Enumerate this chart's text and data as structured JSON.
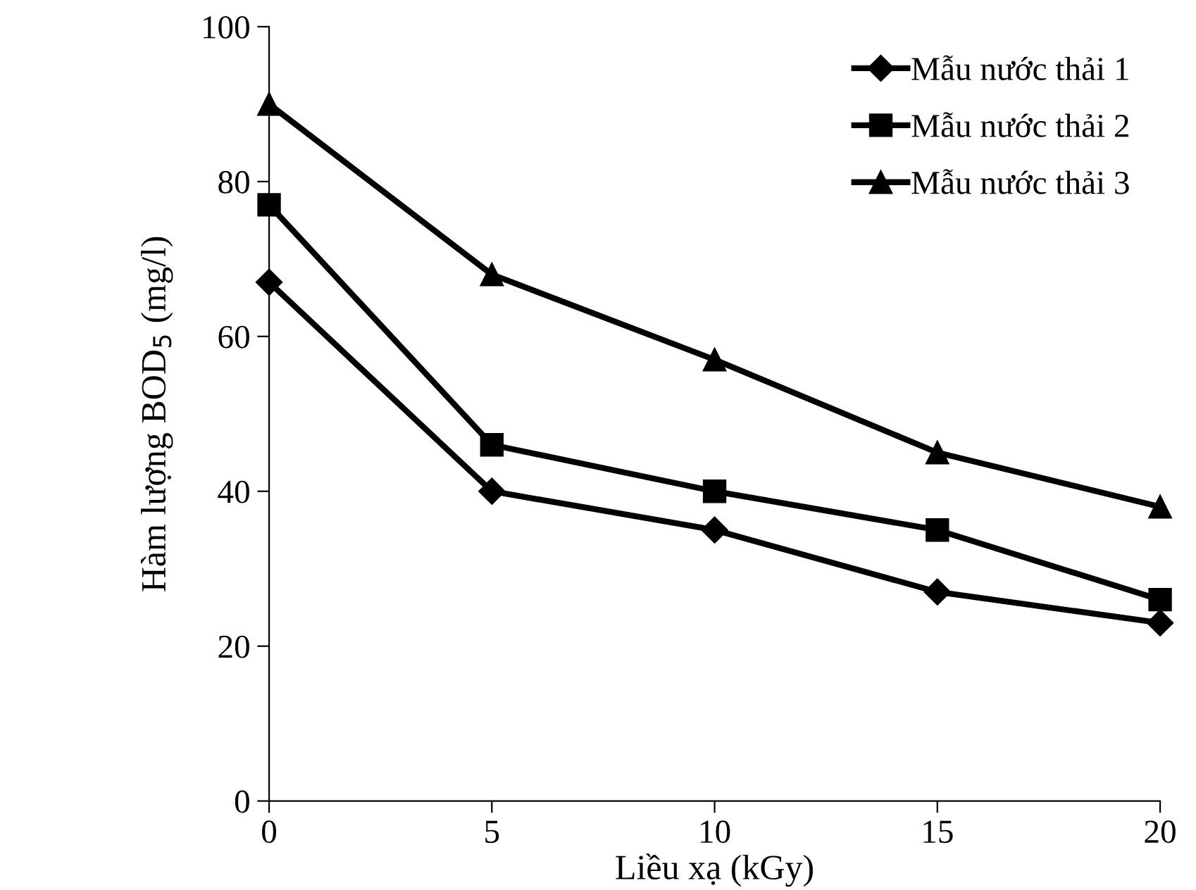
{
  "chart_data": {
    "type": "line",
    "xlabel": "Liều xạ (kGy)",
    "ylabel": "Hàm lượng BOD$_{5}$ (mg/l)",
    "x": [
      0,
      5,
      10,
      15,
      20
    ],
    "xlim": [
      0,
      20
    ],
    "xticks": [
      0,
      5,
      10,
      15,
      20
    ],
    "ylim": [
      0,
      100
    ],
    "yticks": [
      0,
      20,
      40,
      60,
      80,
      100
    ],
    "grid": false,
    "legend": "top right",
    "line_style": "solid",
    "series": [
      {
        "name": "Mẫu nước thải 1",
        "color": "#000000",
        "marker": "diamond",
        "values": [
          67,
          40,
          35,
          27,
          23
        ]
      },
      {
        "name": "Mẫu nước thải 2",
        "color": "#000000",
        "marker": "square",
        "values": [
          77,
          46,
          40,
          35,
          26
        ]
      },
      {
        "name": "Mẫu nước thải 3",
        "color": "#000000",
        "marker": "triangle",
        "values": [
          90,
          68,
          57,
          45,
          38
        ]
      }
    ]
  }
}
